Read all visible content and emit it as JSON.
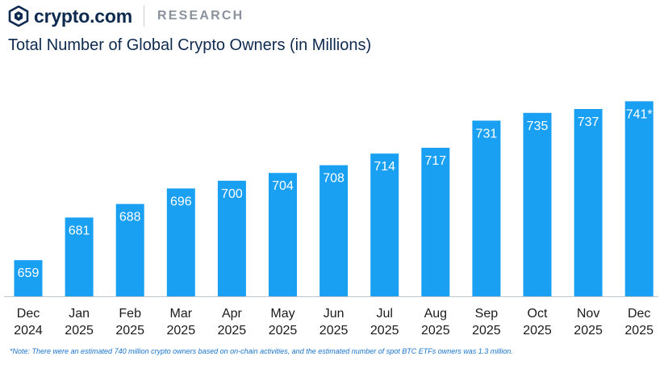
{
  "header": {
    "logo_text": "crypto.com",
    "logo_icon": "crypto-com-lion-shield-icon",
    "research_label": "RESEARCH"
  },
  "colors": {
    "bar": "#1aa0f3",
    "title": "#0e2a4e",
    "note": "#1a73c9"
  },
  "chart_data": {
    "type": "bar",
    "title": "Total Number of Global Crypto Owners (in Millions)",
    "xlabel": "",
    "ylabel": "",
    "categories": [
      [
        "Dec",
        "2024"
      ],
      [
        "Jan",
        "2025"
      ],
      [
        "Feb",
        "2025"
      ],
      [
        "Mar",
        "2025"
      ],
      [
        "Apr",
        "2025"
      ],
      [
        "May",
        "2025"
      ],
      [
        "Jun",
        "2025"
      ],
      [
        "Jul",
        "2025"
      ],
      [
        "Aug",
        "2025"
      ],
      [
        "Sep",
        "2025"
      ],
      [
        "Oct",
        "2025"
      ],
      [
        "Nov",
        "2025"
      ],
      [
        "Dec",
        "2025"
      ]
    ],
    "values": [
      659,
      681,
      688,
      696,
      700,
      704,
      708,
      714,
      717,
      731,
      735,
      737,
      741
    ],
    "data_labels": [
      "659",
      "681",
      "688",
      "696",
      "700",
      "704",
      "708",
      "714",
      "717",
      "731",
      "735",
      "737",
      "741*"
    ],
    "grid": false,
    "legend": "none"
  },
  "footnote": "*Note: There were an estimated 740 million crypto owners based on on-chain activities, and the estimated number of spot BTC ETFs owners was 1.3 million."
}
